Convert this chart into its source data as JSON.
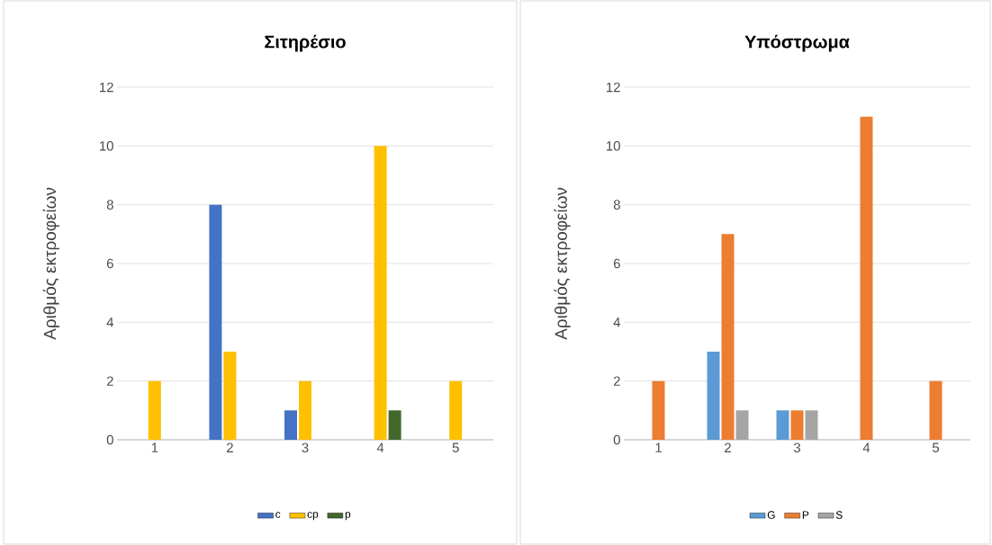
{
  "chart_data": [
    {
      "type": "bar",
      "title": "Σιτηρέσιο",
      "ylabel": "Αριθμός εκτροφείων",
      "categories": [
        "1",
        "2",
        "3",
        "4",
        "5"
      ],
      "series": [
        {
          "name": "c",
          "color": "#4472c4",
          "values": [
            null,
            8,
            1,
            null,
            null
          ]
        },
        {
          "name": "cp",
          "color": "#ffc000",
          "values": [
            2,
            3,
            2,
            10,
            2
          ]
        },
        {
          "name": "p",
          "color": "#43682b",
          "values": [
            null,
            null,
            null,
            1,
            null
          ]
        }
      ],
      "ylim": [
        0,
        12
      ],
      "yticks": [
        0,
        2,
        4,
        6,
        8,
        10,
        12
      ],
      "grid": "y",
      "legend": "bottom"
    },
    {
      "type": "bar",
      "title": "Υπόστρωμα",
      "ylabel": "Αριθμός εκτροφείων",
      "categories": [
        "1",
        "2",
        "3",
        "4",
        "5"
      ],
      "series": [
        {
          "name": "G",
          "color": "#5b9bd5",
          "values": [
            null,
            3,
            1,
            null,
            null
          ]
        },
        {
          "name": "P",
          "color": "#ed7d31",
          "values": [
            2,
            7,
            1,
            11,
            2
          ]
        },
        {
          "name": "S",
          "color": "#a5a5a5",
          "values": [
            null,
            1,
            1,
            null,
            null
          ]
        }
      ],
      "ylim": [
        0,
        12
      ],
      "yticks": [
        0,
        2,
        4,
        6,
        8,
        10,
        12
      ],
      "grid": "y",
      "legend": "bottom"
    }
  ]
}
